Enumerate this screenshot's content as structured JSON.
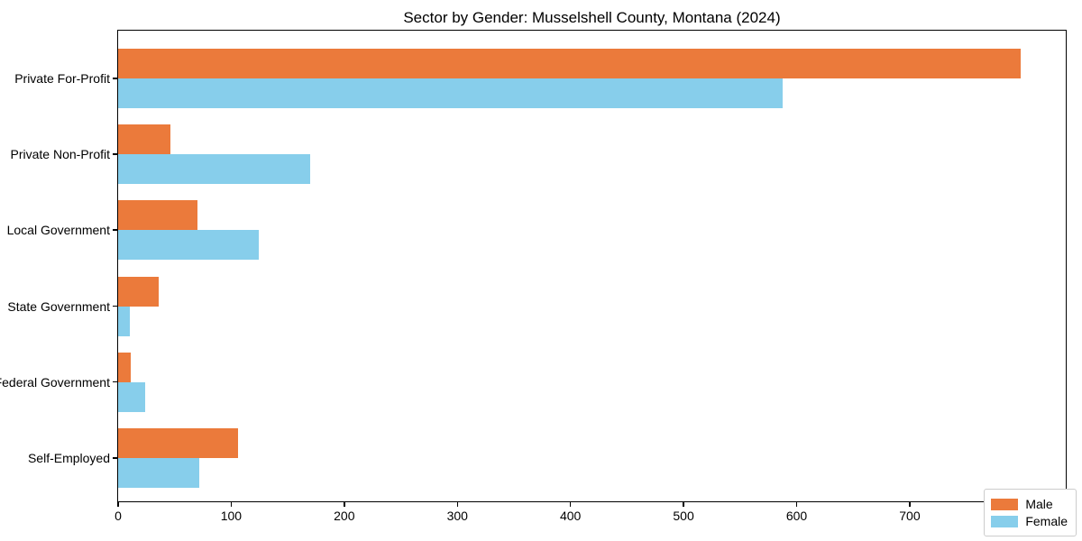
{
  "chart_data": {
    "type": "bar",
    "orientation": "horizontal",
    "title": "Sector by Gender: Musselshell County, Montana (2024)",
    "categories": [
      "Private For-Profit",
      "Private Non-Profit",
      "Local Government",
      "State Government",
      "Federal Government",
      "Self-Employed"
    ],
    "series": [
      {
        "name": "Male",
        "color": "#EB7A3B",
        "values": [
          798,
          46,
          70,
          36,
          11,
          106
        ]
      },
      {
        "name": "Female",
        "color": "#87CEEB",
        "values": [
          588,
          170,
          124,
          10,
          24,
          72
        ]
      }
    ],
    "xlabel": "",
    "ylabel": "",
    "xlim": [
      0,
      838
    ],
    "xticks": [
      0,
      100,
      200,
      300,
      400,
      500,
      600,
      700,
      800
    ],
    "legend_position": "lower right",
    "grid": false,
    "spine_color": "#000000",
    "background_color": "#ffffff"
  }
}
